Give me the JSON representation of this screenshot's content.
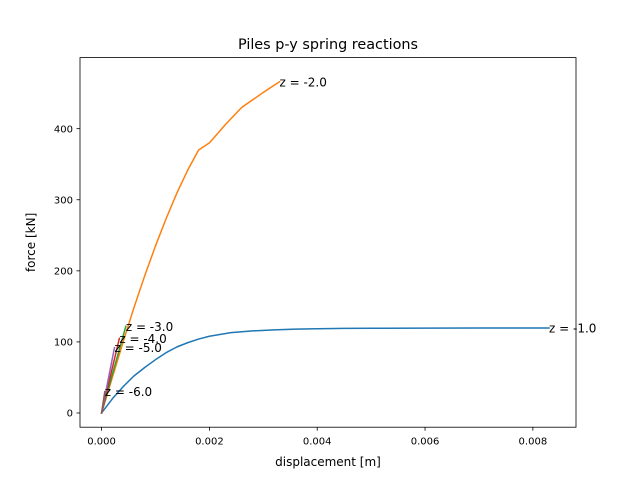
{
  "chart_data": {
    "type": "line",
    "title": "Piles p-y spring reactions",
    "xlabel": "displacement [m]",
    "ylabel": "force [kN]",
    "xlim": [
      -0.0004,
      0.0088
    ],
    "ylim": [
      -20,
      500
    ],
    "xticks": [
      0.0,
      0.002,
      0.004,
      0.006,
      0.008
    ],
    "xtick_labels": [
      "0.000",
      "0.002",
      "0.004",
      "0.006",
      "0.008"
    ],
    "yticks": [
      0,
      100,
      200,
      300,
      400
    ],
    "ytick_labels": [
      "0",
      "100",
      "200",
      "300",
      "400"
    ],
    "grid": false,
    "series": [
      {
        "name": "z = -1.0",
        "color": "#1f77b4",
        "x": [
          0,
          0.0002,
          0.0004,
          0.0006,
          0.0008,
          0.001,
          0.0012,
          0.0014,
          0.0016,
          0.0018,
          0.002,
          0.0024,
          0.0028,
          0.0032,
          0.0036,
          0.004,
          0.0045,
          0.005,
          0.006,
          0.007,
          0.0083
        ],
        "y": [
          0,
          20,
          37,
          52,
          64,
          75,
          85,
          93,
          99,
          104,
          108,
          113,
          115.5,
          117,
          118,
          118.5,
          119,
          119.2,
          119.4,
          119.5,
          119.6
        ],
        "label_x": 0.0083,
        "label_y": 119.6
      },
      {
        "name": "z = -2.0",
        "color": "#ff7f0e",
        "x": [
          0,
          0.0002,
          0.0004,
          0.0006,
          0.0008,
          0.001,
          0.0012,
          0.0014,
          0.0016,
          0.0018,
          0.002,
          0.0023,
          0.0026,
          0.003,
          0.0033
        ],
        "y": [
          0,
          50,
          100,
          148,
          193,
          235,
          274,
          310,
          342,
          370,
          380,
          406,
          430,
          451,
          466
        ],
        "label_x": 0.0033,
        "label_y": 466
      },
      {
        "name": "z = -3.0",
        "color": "#2ca02c",
        "x": [
          0,
          0.00045
        ],
        "y": [
          0,
          122
        ],
        "label_x": 0.00045,
        "label_y": 122
      },
      {
        "name": "z = -4.0",
        "color": "#d62728",
        "x": [
          0,
          0.00033
        ],
        "y": [
          0,
          105
        ],
        "label_x": 0.00033,
        "label_y": 105
      },
      {
        "name": "z = -5.0",
        "color": "#9467bd",
        "x": [
          0,
          0.00024
        ],
        "y": [
          0,
          92
        ],
        "label_x": 0.00024,
        "label_y": 92
      },
      {
        "name": "z = -6.0",
        "color": "#8c564b",
        "x": [
          0,
          6e-05
        ],
        "y": [
          0,
          30
        ],
        "label_x": 6e-05,
        "label_y": 30
      }
    ]
  }
}
